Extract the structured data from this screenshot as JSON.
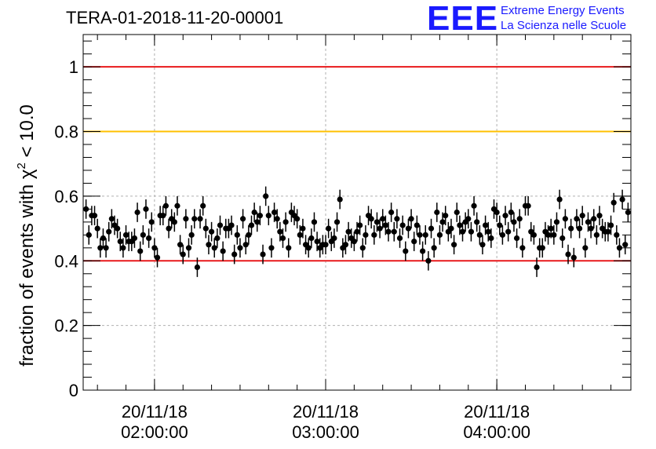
{
  "header": {
    "title": "TERA-01-2018-11-20-00001",
    "logo_mark": "EEE",
    "logo_line1": "Extreme Energy Events",
    "logo_line2": "La Scienza nelle Scuole"
  },
  "colors": {
    "threshold_red": "#e8191b",
    "threshold_yellow": "#ffc000",
    "points": "#000000",
    "logo_blue": "#1a1aff"
  },
  "chart_data": {
    "type": "scatter",
    "title": "TERA-01-2018-11-20-00001",
    "ylabel_main": "fraction of events with χ",
    "ylabel_sup": "2",
    "ylabel_tail": " < 10.0",
    "xlim": [
      "01:35:00",
      "04:47:00"
    ],
    "ylim": [
      0,
      1.1
    ],
    "grid": true,
    "y_ticks": [
      {
        "value": 0,
        "label": "0"
      },
      {
        "value": 0.2,
        "label": "0.2"
      },
      {
        "value": 0.4,
        "label": "0.4"
      },
      {
        "value": 0.6,
        "label": "0.6"
      },
      {
        "value": 0.8,
        "label": "0.8"
      },
      {
        "value": 1,
        "label": "1"
      }
    ],
    "x_ticks": [
      {
        "time": "02:00:00",
        "date_label": "20/11/18",
        "time_label": "02:00:00"
      },
      {
        "time": "03:00:00",
        "date_label": "20/11/18",
        "time_label": "03:00:00"
      },
      {
        "time": "04:00:00",
        "date_label": "20/11/18",
        "time_label": "04:00:00"
      }
    ],
    "reference_lines": [
      {
        "y": 1.0,
        "color": "#e8191b"
      },
      {
        "y": 0.8,
        "color": "#ffc000"
      },
      {
        "y": 0.4,
        "color": "#e8191b"
      }
    ],
    "error_bar": 0.03,
    "series": [
      {
        "x": [
          "01:36:00",
          "01:37:00",
          "01:38:00",
          "01:39:00",
          "01:40:00",
          "01:41:00",
          "01:42:00",
          "01:43:00",
          "01:44:00",
          "01:45:00",
          "01:46:00",
          "01:47:00",
          "01:48:00",
          "01:49:00",
          "01:50:00",
          "01:51:00",
          "01:52:00",
          "01:53:00",
          "01:54:00",
          "01:55:00",
          "01:56:00",
          "01:57:00",
          "01:58:00",
          "01:59:00",
          "02:00:00",
          "02:01:00",
          "02:02:00",
          "02:03:00",
          "02:04:00",
          "02:05:00",
          "02:06:00",
          "02:07:00",
          "02:08:00",
          "02:09:00",
          "02:10:00",
          "02:11:00",
          "02:12:00",
          "02:13:00",
          "02:14:00",
          "02:15:00",
          "02:16:00",
          "02:17:00",
          "02:18:00",
          "02:19:00",
          "02:20:00",
          "02:21:00",
          "02:22:00",
          "02:23:00",
          "02:24:00",
          "02:25:00",
          "02:26:00",
          "02:27:00",
          "02:28:00",
          "02:29:00",
          "02:30:00",
          "02:31:00",
          "02:32:00",
          "02:33:00",
          "02:34:00",
          "02:35:00",
          "02:36:00",
          "02:37:00",
          "02:38:00",
          "02:39:00",
          "02:40:00",
          "02:41:00",
          "02:42:00",
          "02:43:00",
          "02:44:00",
          "02:45:00",
          "02:46:00",
          "02:47:00",
          "02:48:00",
          "02:49:00",
          "02:50:00",
          "02:51:00",
          "02:52:00",
          "02:53:00",
          "02:54:00",
          "02:55:00",
          "02:56:00",
          "02:57:00",
          "02:58:00",
          "02:59:00",
          "03:00:00",
          "03:01:00",
          "03:02:00",
          "03:03:00",
          "03:04:00",
          "03:05:00",
          "03:06:00",
          "03:07:00",
          "03:08:00",
          "03:09:00",
          "03:10:00",
          "03:11:00",
          "03:12:00",
          "03:13:00",
          "03:14:00",
          "03:15:00",
          "03:16:00",
          "03:17:00",
          "03:18:00",
          "03:19:00",
          "03:20:00",
          "03:21:00",
          "03:22:00",
          "03:23:00",
          "03:24:00",
          "03:25:00",
          "03:26:00",
          "03:27:00",
          "03:28:00",
          "03:29:00",
          "03:30:00",
          "03:31:00",
          "03:32:00",
          "03:33:00",
          "03:34:00",
          "03:35:00",
          "03:36:00",
          "03:37:00",
          "03:38:00",
          "03:39:00",
          "03:40:00",
          "03:41:00",
          "03:42:00",
          "03:43:00",
          "03:44:00",
          "03:45:00",
          "03:46:00",
          "03:47:00",
          "03:48:00",
          "03:49:00",
          "03:50:00",
          "03:51:00",
          "03:52:00",
          "03:53:00",
          "03:54:00",
          "03:55:00",
          "03:56:00",
          "03:57:00",
          "03:58:00",
          "03:59:00",
          "04:00:00",
          "04:01:00",
          "04:02:00",
          "04:03:00",
          "04:04:00",
          "04:05:00",
          "04:06:00",
          "04:07:00",
          "04:08:00",
          "04:09:00",
          "04:10:00",
          "04:11:00",
          "04:12:00",
          "04:13:00",
          "04:14:00",
          "04:15:00",
          "04:16:00",
          "04:17:00",
          "04:18:00",
          "04:19:00",
          "04:20:00",
          "04:21:00",
          "04:22:00",
          "04:23:00",
          "04:24:00",
          "04:25:00",
          "04:26:00",
          "04:27:00",
          "04:28:00",
          "04:29:00",
          "04:30:00",
          "04:31:00",
          "04:32:00",
          "04:33:00",
          "04:34:00",
          "04:35:00",
          "04:36:00",
          "04:37:00",
          "04:38:00",
          "04:39:00",
          "04:40:00",
          "04:41:00",
          "04:42:00",
          "04:43:00",
          "04:44:00",
          "04:45:00",
          "04:46:00"
        ],
        "y": [
          0.56,
          0.48,
          0.54,
          0.54,
          0.5,
          0.44,
          0.47,
          0.44,
          0.49,
          0.53,
          0.51,
          0.5,
          0.46,
          0.44,
          0.48,
          0.46,
          0.46,
          0.47,
          0.55,
          0.43,
          0.48,
          0.56,
          0.47,
          0.52,
          0.44,
          0.41,
          0.54,
          0.54,
          0.57,
          0.5,
          0.53,
          0.52,
          0.57,
          0.45,
          0.42,
          0.53,
          0.44,
          0.48,
          0.53,
          0.38,
          0.53,
          0.57,
          0.5,
          0.45,
          0.49,
          0.44,
          0.47,
          0.51,
          0.43,
          0.5,
          0.5,
          0.51,
          0.42,
          0.48,
          0.44,
          0.53,
          0.45,
          0.48,
          0.51,
          0.55,
          0.52,
          0.54,
          0.42,
          0.6,
          0.54,
          0.44,
          0.55,
          0.53,
          0.49,
          0.47,
          0.52,
          0.44,
          0.55,
          0.54,
          0.53,
          0.48,
          0.5,
          0.45,
          0.44,
          0.47,
          0.52,
          0.46,
          0.44,
          0.45,
          0.45,
          0.5,
          0.46,
          0.47,
          0.52,
          0.59,
          0.44,
          0.45,
          0.49,
          0.47,
          0.46,
          0.49,
          0.51,
          0.44,
          0.48,
          0.54,
          0.53,
          0.48,
          0.52,
          0.5,
          0.53,
          0.51,
          0.49,
          0.55,
          0.49,
          0.53,
          0.47,
          0.51,
          0.43,
          0.5,
          0.53,
          0.46,
          0.51,
          0.48,
          0.43,
          0.48,
          0.4,
          0.5,
          0.44,
          0.55,
          0.48,
          0.52,
          0.54,
          0.49,
          0.5,
          0.45,
          0.55,
          0.51,
          0.49,
          0.52,
          0.53,
          0.49,
          0.57,
          0.52,
          0.48,
          0.45,
          0.51,
          0.49,
          0.47,
          0.56,
          0.55,
          0.51,
          0.48,
          0.54,
          0.49,
          0.55,
          0.52,
          0.47,
          0.53,
          0.44,
          0.57,
          0.57,
          0.49,
          0.48,
          0.38,
          0.44,
          0.44,
          0.49,
          0.48,
          0.5,
          0.48,
          0.52,
          0.59,
          0.47,
          0.53,
          0.42,
          0.5,
          0.41,
          0.53,
          0.5,
          0.54,
          0.44,
          0.52,
          0.5,
          0.53,
          0.48,
          0.54,
          0.5,
          0.49,
          0.49,
          0.51,
          0.58,
          0.48,
          0.44,
          0.59,
          0.45,
          0.55
        ]
      }
    ]
  }
}
